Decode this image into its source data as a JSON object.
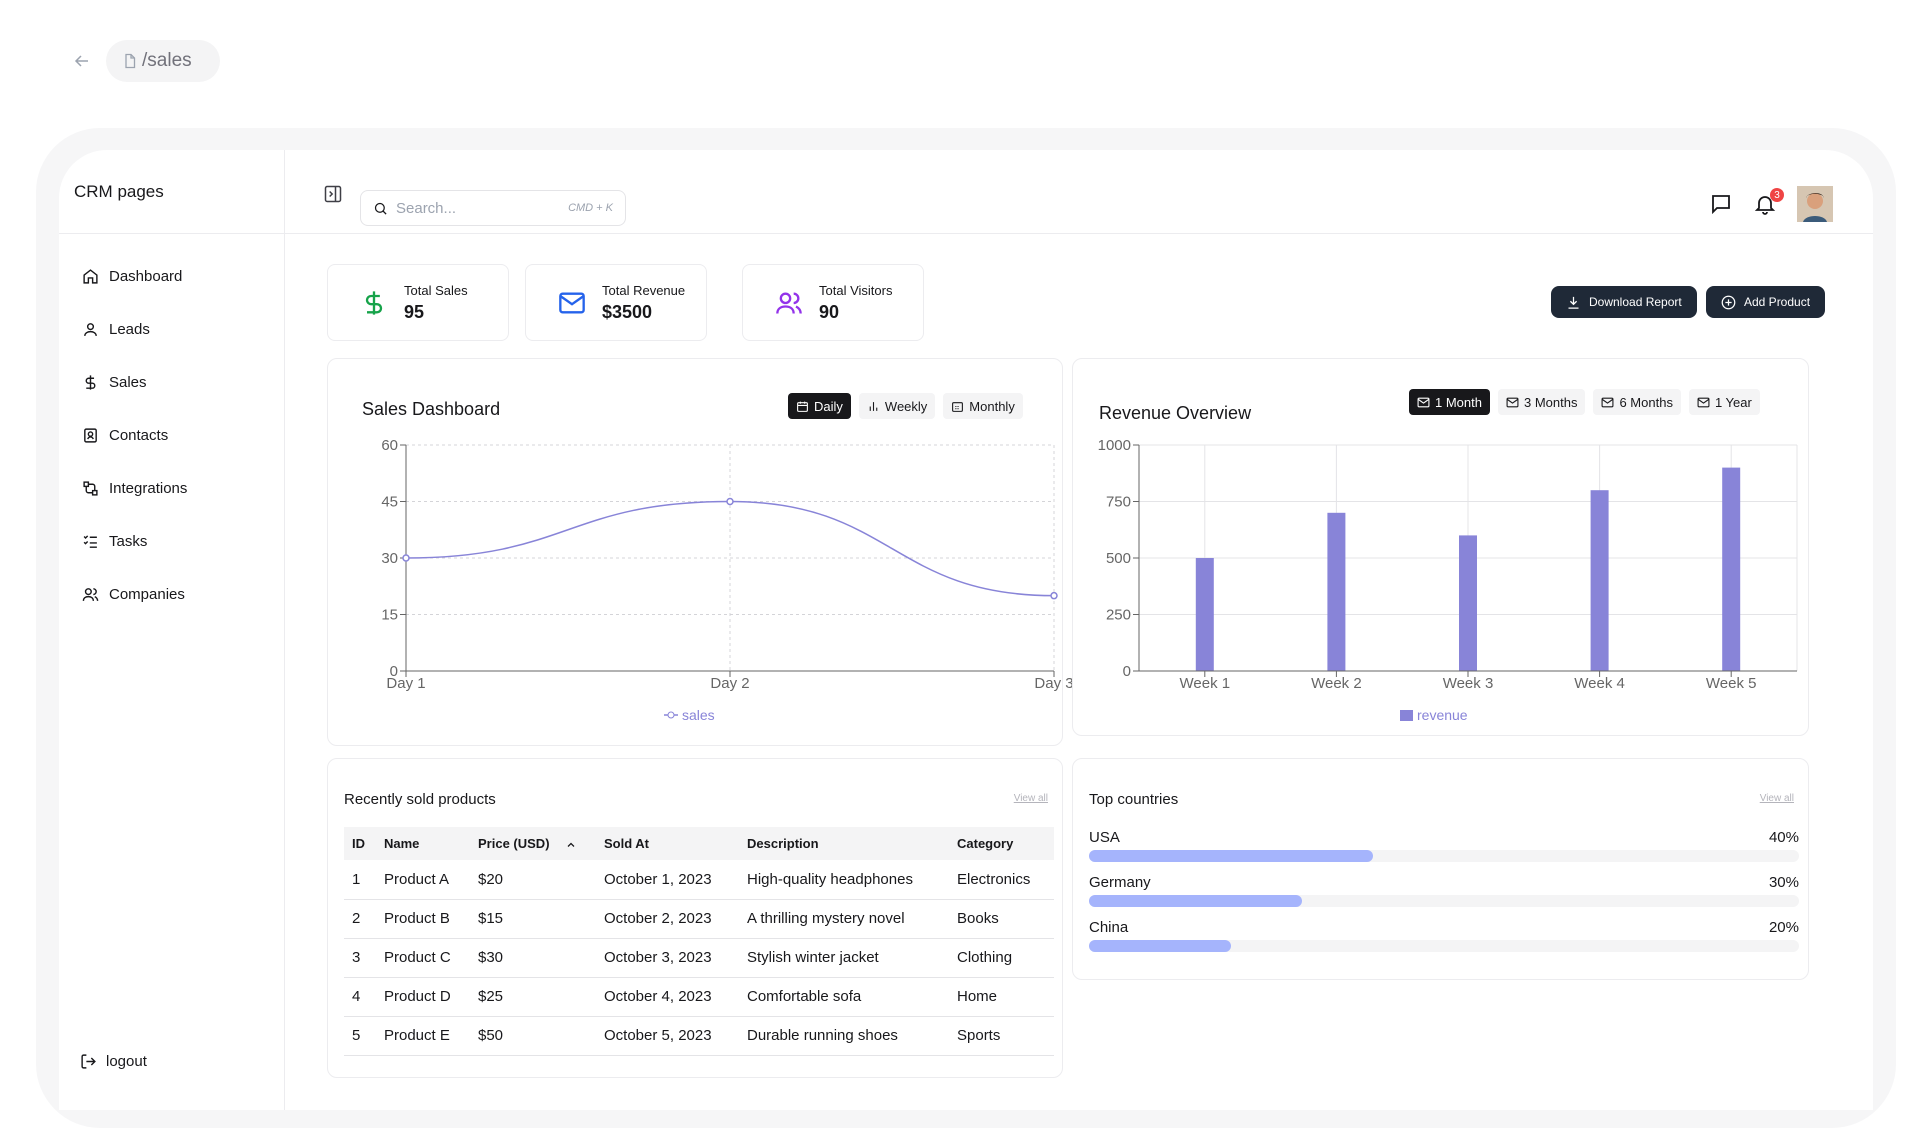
{
  "breadcrumb": {
    "path": "/sales"
  },
  "sidebar": {
    "title": "CRM pages",
    "items": [
      {
        "label": "Dashboard",
        "icon": "home-icon"
      },
      {
        "label": "Leads",
        "icon": "user-icon"
      },
      {
        "label": "Sales",
        "icon": "dollar-icon"
      },
      {
        "label": "Contacts",
        "icon": "contact-icon"
      },
      {
        "label": "Integrations",
        "icon": "integration-icon"
      },
      {
        "label": "Tasks",
        "icon": "tasks-icon"
      },
      {
        "label": "Companies",
        "icon": "users-icon"
      }
    ],
    "logout": "logout"
  },
  "header": {
    "search_placeholder": "Search...",
    "search_shortcut": "CMD + K",
    "notification_count": "3"
  },
  "stats": [
    {
      "label": "Total Sales",
      "value": "95",
      "color": "#16a34a"
    },
    {
      "label": "Total Revenue",
      "value": "$3500",
      "color": "#2563eb"
    },
    {
      "label": "Total Visitors",
      "value": "90",
      "color": "#9333ea"
    }
  ],
  "actions": {
    "download": "Download Report",
    "add": "Add Product"
  },
  "sales_chart": {
    "title": "Sales Dashboard",
    "ranges": [
      "Daily",
      "Weekly",
      "Monthly"
    ],
    "active_range": "Daily"
  },
  "revenue_chart": {
    "title": "Revenue Overview",
    "ranges": [
      "1 Month",
      "3 Months",
      "6 Months",
      "1 Year"
    ],
    "active_range": "1 Month"
  },
  "chart_data": [
    {
      "type": "line",
      "title": "Sales Dashboard",
      "x": [
        "Day 1",
        "Day 2",
        "Day 3"
      ],
      "series": [
        {
          "name": "sales",
          "values": [
            30,
            45,
            20
          ]
        }
      ],
      "ylim": [
        0,
        60
      ],
      "yticks": [
        0,
        15,
        30,
        45,
        60
      ],
      "grid": true,
      "color": "#8884d8"
    },
    {
      "type": "bar",
      "title": "Revenue Overview",
      "categories": [
        "Week 1",
        "Week 2",
        "Week 3",
        "Week 4",
        "Week 5"
      ],
      "series": [
        {
          "name": "revenue",
          "values": [
            500,
            700,
            600,
            800,
            900
          ]
        }
      ],
      "ylim": [
        0,
        1000
      ],
      "yticks": [
        0,
        250,
        500,
        750,
        1000
      ],
      "grid": true,
      "color": "#8884d8"
    }
  ],
  "products": {
    "title": "Recently sold products",
    "view_all": "View all",
    "columns": [
      "ID",
      "Name",
      "Price (USD)",
      "Sold At",
      "Description",
      "Category"
    ],
    "rows": [
      [
        "1",
        "Product A",
        "$20",
        "October 1, 2023",
        "High-quality headphones",
        "Electronics"
      ],
      [
        "2",
        "Product B",
        "$15",
        "October 2, 2023",
        "A thrilling mystery novel",
        "Books"
      ],
      [
        "3",
        "Product C",
        "$30",
        "October 3, 2023",
        "Stylish winter jacket",
        "Clothing"
      ],
      [
        "4",
        "Product D",
        "$25",
        "October 4, 2023",
        "Comfortable sofa",
        "Home"
      ],
      [
        "5",
        "Product E",
        "$50",
        "October 5, 2023",
        "Durable running shoes",
        "Sports"
      ]
    ]
  },
  "countries": {
    "title": "Top countries",
    "view_all": "View all",
    "items": [
      {
        "name": "USA",
        "percent_label": "40%",
        "percent": 40
      },
      {
        "name": "Germany",
        "percent_label": "30%",
        "percent": 30
      },
      {
        "name": "China",
        "percent_label": "20%",
        "percent": 20
      }
    ]
  }
}
